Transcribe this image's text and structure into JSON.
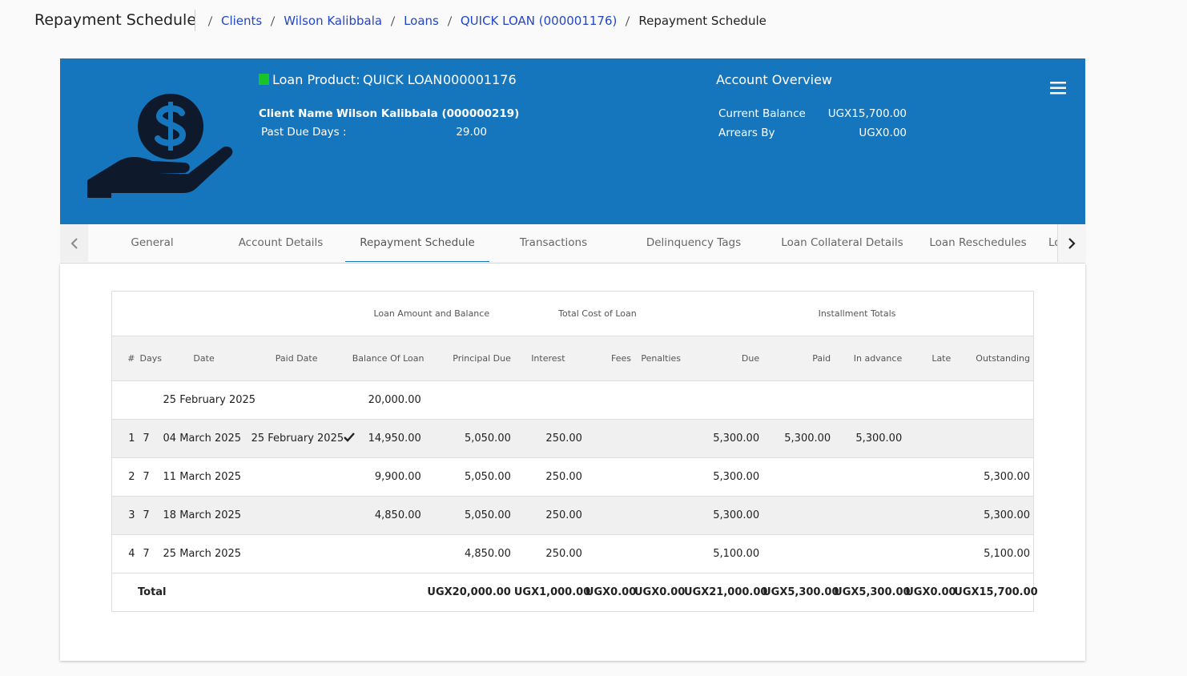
{
  "header": {
    "title": "Repayment Schedule",
    "breadcrumbs": [
      "Clients",
      "Wilson Kalibbala",
      "Loans",
      "QUICK LOAN (000001176)",
      "Repayment Schedule"
    ]
  },
  "loan": {
    "product_label": "Loan Product:",
    "product_name": "QUICK LOAN",
    "account_no": "000001176",
    "client_label": "Client Name :",
    "client_name": "Wilson Kalibbala (000000219)",
    "past_due_label": "Past Due Days :",
    "past_due_value": "29.00",
    "overview_title": "Account Overview",
    "overview": [
      {
        "label": "Current Balance",
        "value": "UGX15,700.00"
      },
      {
        "label": "Arrears By",
        "value": "UGX0.00"
      }
    ]
  },
  "tabs": [
    "General",
    "Account Details",
    "Repayment Schedule",
    "Transactions",
    "Delinquency Tags",
    "Loan Collateral Details",
    "Loan Reschedules",
    "Lo"
  ],
  "table": {
    "groups": [
      "Loan Amount and Balance",
      "Total Cost of Loan",
      "Installment Totals"
    ],
    "columns": [
      "#",
      "Days",
      "Date",
      "Paid Date",
      "Balance Of Loan",
      "Principal Due",
      "Interest",
      "Fees",
      "Penalties",
      "Due",
      "Paid",
      "In advance",
      "Late",
      "Outstanding"
    ],
    "rows": [
      [
        null,
        null,
        "25 February 2025",
        null,
        "20,000.00",
        null,
        null,
        null,
        null,
        null,
        null,
        null,
        null,
        null
      ],
      [
        1,
        7,
        "04 March 2025",
        "25 February 2025",
        "14,950.00",
        "5,050.00",
        "250.00",
        null,
        null,
        "5,300.00",
        "5,300.00",
        "5,300.00",
        null,
        null
      ],
      [
        2,
        7,
        "11 March 2025",
        null,
        "9,900.00",
        "5,050.00",
        "250.00",
        null,
        null,
        "5,300.00",
        null,
        null,
        null,
        "5,300.00"
      ],
      [
        3,
        7,
        "18 March 2025",
        null,
        "4,850.00",
        "5,050.00",
        "250.00",
        null,
        null,
        "5,300.00",
        null,
        null,
        null,
        "5,300.00"
      ],
      [
        4,
        7,
        "25 March 2025",
        null,
        null,
        "4,850.00",
        "250.00",
        null,
        null,
        "5,100.00",
        null,
        null,
        null,
        "5,100.00"
      ]
    ],
    "total": {
      "label": "Total",
      "values": [
        "UGX20,000.00",
        "UGX1,000.00",
        "UGX0.00",
        "UGX0.00",
        "UGX21,000.00",
        "UGX5,300.00",
        "UGX5,300.00",
        "UGX0.00",
        "UGX15,700.00"
      ]
    }
  }
}
